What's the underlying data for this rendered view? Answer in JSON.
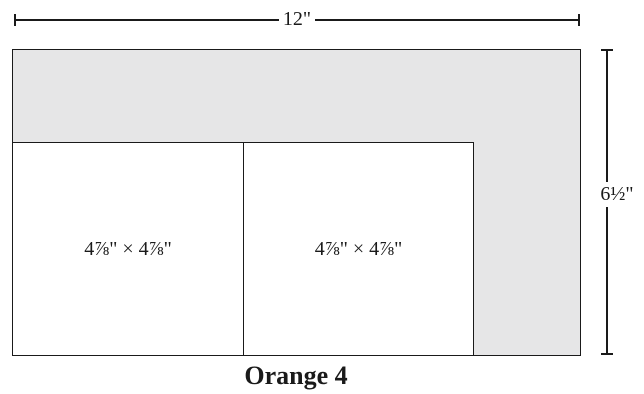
{
  "dimensions": {
    "width_label": "12\"",
    "height_label": "6½\""
  },
  "panels": [
    {
      "label": "4⅞\" × 4⅞\""
    },
    {
      "label": "4⅞\" × 4⅞\""
    }
  ],
  "caption": "Orange 4",
  "colors": {
    "sheet_fill": "#e6e6e7",
    "panel_fill": "#ffffff",
    "line": "#1a1a1a"
  }
}
